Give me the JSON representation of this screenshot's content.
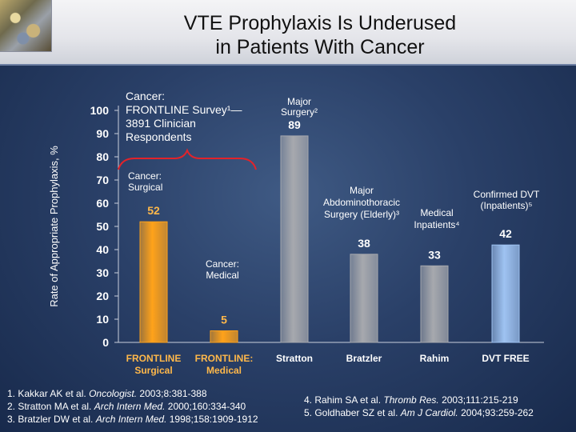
{
  "header": {
    "title_line1": "VTE Prophylaxis Is Underused",
    "title_line2": "in Patients With Cancer"
  },
  "chart_data": {
    "type": "bar",
    "ylabel": "Rate of Appropriate Prophylaxis, %",
    "ylim": [
      0,
      100
    ],
    "yticks": [
      "0",
      "10",
      "20",
      "30",
      "40",
      "50",
      "60",
      "70",
      "80",
      "90",
      "100"
    ],
    "categories": [
      [
        "FRONTLINE",
        "Surgical"
      ],
      [
        "FRONTLINE:",
        "Medical"
      ],
      [
        "Stratton"
      ],
      [
        "Bratzler"
      ],
      [
        "Rahim"
      ],
      [
        "DVT FREE"
      ]
    ],
    "values": [
      52,
      5,
      89,
      38,
      33,
      42
    ],
    "value_labels": [
      "52",
      "5",
      "89",
      "38",
      "33",
      "42"
    ],
    "bar_colors": [
      "#ffa21a",
      "#ffa21a",
      "#a7a9ae",
      "#a7a9ae",
      "#a7a9ae",
      "#9fc3f2"
    ],
    "label_colors": [
      "#ffb84a",
      "#ffb84a",
      "#ffffff",
      "#ffffff",
      "#ffffff",
      "#ffffff"
    ],
    "annotations": {
      "frontline": [
        "Cancer:",
        "FRONTLINE Survey¹—",
        "3891 Clinician",
        "Respondents"
      ],
      "surgical": [
        "Cancer:",
        "Surgical"
      ],
      "medical": [
        "Cancer:",
        "Medical"
      ],
      "major_surgery": [
        "Major",
        "Surgery²"
      ],
      "abdominothoracic": [
        "Major",
        "Abdominothoracic",
        "Surgery (Elderly)³"
      ],
      "medical_inpatients": [
        "Medical",
        "Inpatients⁴"
      ],
      "confirmed_dvt": [
        "Confirmed DVT",
        "(Inpatients)⁵"
      ]
    }
  },
  "references": {
    "r1_pre": "1. Kakkar AK et al. ",
    "r1_journal": "Oncologist.",
    "r1_post": " 2003;8:381-388",
    "r2_pre": "2. Stratton MA et al. ",
    "r2_journal": "Arch Intern Med.",
    "r2_post": " 2000;160:334-340",
    "r3_pre": "3. Bratzler DW et al. ",
    "r3_journal": "Arch Intern Med.",
    "r3_post": " 1998;158:1909-1912",
    "r4_pre": "4. Rahim SA et al. ",
    "r4_journal": "Thromb Res.",
    "r4_post": " 2003;111:215-219",
    "r5_pre": "5. Goldhaber SZ et al. ",
    "r5_journal": "Am J Cardiol.",
    "r5_post": " 2004;93:259-262"
  }
}
